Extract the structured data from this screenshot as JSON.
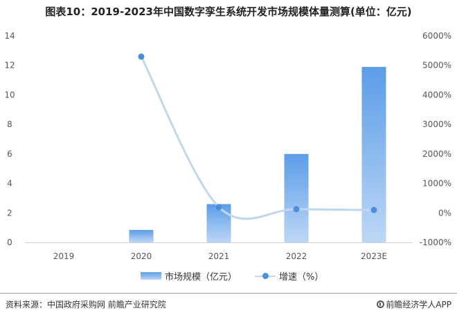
{
  "title": "图表10：2019-2023年中国数字孪生系统开发市场规模体量测算(单位：亿元)",
  "legend": {
    "bar_label": "市场规模（亿元）",
    "line_label": "增速（%）"
  },
  "footer": {
    "source": "资料来源：中国政府采购网 前瞻产业研究院",
    "brand": "前瞻经济学人APP"
  },
  "colors": {
    "bar_top": "#5b9de8",
    "bar_bottom": "#bcd7f5",
    "line": "#bfd6ef",
    "marker": "#4a90d9"
  },
  "chart_data": {
    "type": "bar",
    "categories": [
      "2019",
      "2020",
      "2021",
      "2022",
      "2023E"
    ],
    "series": [
      {
        "name": "市场规模（亿元）",
        "type": "bar",
        "axis": "left",
        "values": [
          0.0,
          0.85,
          2.6,
          6.0,
          11.9
        ]
      },
      {
        "name": "增速（%）",
        "type": "line",
        "axis": "right",
        "values": [
          null,
          5300,
          200,
          130,
          100
        ]
      }
    ],
    "y_left": {
      "min": 0,
      "max": 14,
      "ticks": [
        "0",
        "2",
        "4",
        "6",
        "8",
        "10",
        "12",
        "14"
      ]
    },
    "y_right": {
      "min": -1000,
      "max": 6000,
      "ticks": [
        "-1000%",
        "0%",
        "1000%",
        "2000%",
        "3000%",
        "4000%",
        "5000%",
        "6000%"
      ]
    },
    "grid": false,
    "legend_position": "bottom"
  }
}
